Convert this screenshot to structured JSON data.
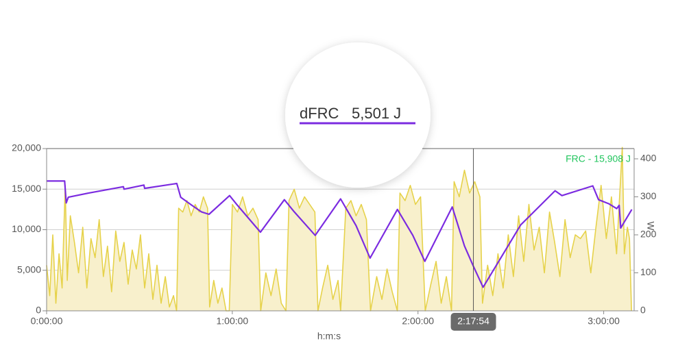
{
  "chart_data": {
    "type": "line",
    "x_label": "h:m:s",
    "y2_label": "W",
    "annotation": "FRC - 15,908 J",
    "annotation_color": "#22c55e",
    "grid": true,
    "xlim": [
      0,
      11390
    ],
    "xticks": [
      {
        "value": 0,
        "label": "0:00:00"
      },
      {
        "value": 3600,
        "label": "1:00:00"
      },
      {
        "value": 7200,
        "label": "2:00:00"
      },
      {
        "value": 10800,
        "label": "3:00:00"
      }
    ],
    "ylim": [
      0,
      20000
    ],
    "yticks": [
      0,
      {
        "value": 5000,
        "label": "5,000"
      },
      {
        "value": 10000,
        "label": "10,000"
      },
      {
        "value": 15000,
        "label": "15,000"
      },
      {
        "value": 20000,
        "label": "20,000"
      }
    ],
    "y2lim": [
      0,
      427
    ],
    "y2ticks": [
      0,
      100,
      200,
      300,
      400
    ],
    "cursor": {
      "x": {
        "value": 8274,
        "label": "2:17:54"
      },
      "readout": "5,501 J"
    },
    "series": [
      {
        "type": "area",
        "axis": "y2",
        "color": "#e6d24a",
        "fill": "#f8f0cc",
        "x": [
          0,
          60,
          120,
          180,
          240,
          300,
          360,
          400,
          460,
          540,
          620,
          700,
          780,
          860,
          940,
          1020,
          1100,
          1180,
          1260,
          1340,
          1420,
          1500,
          1580,
          1660,
          1740,
          1820,
          1900,
          1980,
          2060,
          2140,
          2220,
          2300,
          2380,
          2460,
          2520,
          2560,
          2640,
          2720,
          2800,
          2880,
          2960,
          3040,
          3120,
          3160,
          3240,
          3320,
          3400,
          3480,
          3540,
          3600,
          3700,
          3800,
          3900,
          4000,
          4100,
          4150,
          4250,
          4350,
          4450,
          4550,
          4640,
          4700,
          4800,
          4900,
          5000,
          5100,
          5200,
          5260,
          5350,
          5450,
          5550,
          5650,
          5700,
          5800,
          5900,
          6000,
          6100,
          6200,
          6280,
          6400,
          6500,
          6600,
          6700,
          6800,
          6850,
          6950,
          7050,
          7150,
          7250,
          7340,
          7450,
          7550,
          7650,
          7750,
          7850,
          7900,
          8000,
          8100,
          8200,
          8300,
          8400,
          8450,
          8550,
          8650,
          8750,
          8850,
          8950,
          9050,
          9150,
          9250,
          9350,
          9450,
          9550,
          9650,
          9750,
          9850,
          9950,
          10050,
          10150,
          10250,
          10350,
          10450,
          10550,
          10650,
          10750,
          10850,
          10950,
          11050,
          11100,
          11160,
          11200,
          11260,
          11300,
          11340
        ],
        "values": [
          120,
          40,
          200,
          20,
          150,
          60,
          330,
          80,
          250,
          180,
          100,
          220,
          60,
          190,
          140,
          240,
          90,
          170,
          50,
          210,
          130,
          180,
          70,
          160,
          110,
          200,
          60,
          150,
          30,
          120,
          20,
          90,
          10,
          40,
          0,
          270,
          260,
          290,
          250,
          280,
          260,
          300,
          270,
          10,
          80,
          20,
          60,
          0,
          0,
          280,
          260,
          300,
          250,
          270,
          240,
          0,
          100,
          40,
          110,
          20,
          0,
          290,
          320,
          270,
          300,
          280,
          260,
          0,
          60,
          120,
          30,
          80,
          0,
          270,
          290,
          250,
          280,
          240,
          0,
          90,
          30,
          110,
          50,
          0,
          310,
          290,
          330,
          280,
          300,
          0,
          70,
          130,
          20,
          90,
          0,
          340,
          300,
          370,
          310,
          340,
          300,
          20,
          120,
          40,
          150,
          60,
          200,
          90,
          250,
          130,
          280,
          160,
          220,
          100,
          260,
          180,
          90,
          240,
          140,
          200,
          190,
          210,
          100,
          220,
          330,
          190,
          300,
          150,
          280,
          430,
          150,
          220,
          190,
          0
        ]
      },
      {
        "name": "dFRC",
        "type": "line",
        "axis": "y",
        "color": "#7b2be0",
        "x": [
          0,
          350,
          380,
          420,
          800,
          1488,
          1500,
          1886,
          1900,
          2524,
          2600,
          2816,
          3000,
          3148,
          3547,
          3700,
          4145,
          4609,
          4800,
          5207,
          5699,
          6000,
          6270,
          6801,
          7100,
          7333,
          7864,
          8100,
          8274,
          8462,
          9192,
          9857,
          9990,
          10588,
          10700,
          10900,
          11052,
          11100,
          11130,
          11345
        ],
        "values": [
          16000,
          16000,
          13300,
          14000,
          14500,
          15300,
          15000,
          15500,
          15100,
          15700,
          14000,
          13000,
          12200,
          11900,
          14200,
          13000,
          9700,
          13700,
          12200,
          9300,
          13800,
          10500,
          6500,
          12500,
          9300,
          6100,
          12800,
          8000,
          5501,
          2900,
          10600,
          14800,
          14200,
          15400,
          13700,
          13200,
          12600,
          13000,
          10200,
          12500
        ]
      }
    ]
  }
}
